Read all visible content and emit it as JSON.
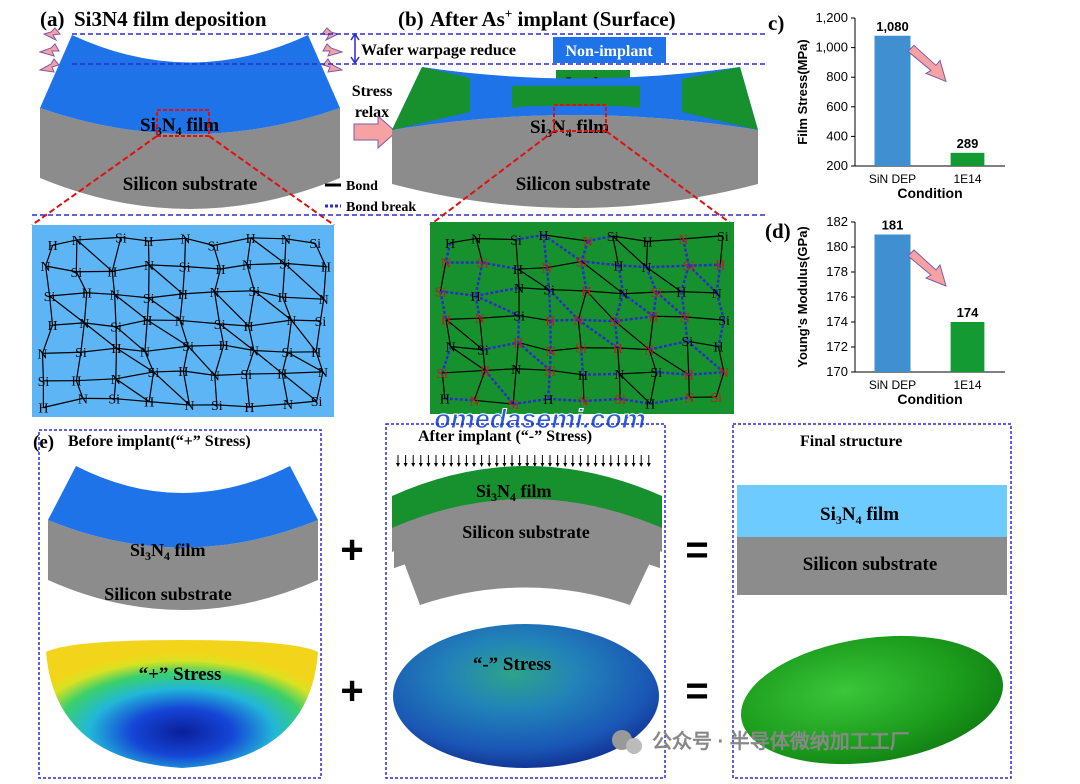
{
  "panel_a": {
    "title_letter": "(a)",
    "title": "Si3N4 film deposition",
    "film_label": "Si",
    "substrate_label": "Silicon substrate"
  },
  "panel_b": {
    "title_letter": "(b)",
    "title_pre": "After As",
    "title_sup": "+",
    "title_post": " implant (Surface)",
    "film_label": "Si",
    "substrate_label": "Silicon substrate",
    "stress_relax_1": "Stress",
    "stress_relax_2": "relax",
    "warpage_label": "Wafer warpage reduce",
    "legend_nonimplant": "Non-implant",
    "legend_implant": "Implant",
    "bond_label": "Bond",
    "bond_break_label": "Bond break"
  },
  "film_suffix": {
    "three": "3",
    "N": "N",
    "four": "4",
    "word": " film"
  },
  "watermark": "omedasemi.com",
  "panel_c": {
    "letter": "c)",
    "chart_data": {
      "type": "bar",
      "categories": [
        "SiN DEP",
        "1E14"
      ],
      "values": [
        1080,
        289
      ],
      "value_labels": [
        "1,080",
        "289"
      ],
      "ylabel": "Film Stress(MPa)",
      "xlabel": "Condition",
      "ylim": [
        200,
        1200
      ],
      "yticks": [
        "200",
        "400",
        "600",
        "800",
        "1,000",
        "1,200"
      ],
      "colors": [
        "#3F8FD1",
        "#139A32"
      ]
    }
  },
  "panel_d": {
    "letter": "(d)",
    "chart_data": {
      "type": "bar",
      "categories": [
        "SiN DEP",
        "1E14"
      ],
      "values": [
        181,
        174
      ],
      "value_labels": [
        "181",
        "174"
      ],
      "ylabel": "Young's Modulus(GPa)",
      "xlabel": "Condition",
      "ylim": [
        170,
        182
      ],
      "yticks": [
        "170",
        "172",
        "174",
        "176",
        "178",
        "180",
        "182"
      ],
      "colors": [
        "#3F8FD1",
        "#139A32"
      ]
    }
  },
  "panel_e": {
    "letter": "(e)",
    "before_title": "Before implant(“+” Stress)",
    "after_title": "After implant (“-” Stress)",
    "final_title": "Final structure",
    "substrate_label": "Silicon substrate",
    "plus_stress": "“+” Stress",
    "minus_stress": "“-” Stress",
    "plus": "+",
    "equals": "="
  },
  "footer": "公众号 · 半导体微纳加工工厂",
  "molecule": {
    "si": "Si",
    "n": "N",
    "h": "H"
  },
  "colors": {
    "film_blue": "#1E73E8",
    "implant_green": "#17902E",
    "substrate_grey": "#8C8C8C",
    "light_blue": "#6ECBFF"
  }
}
